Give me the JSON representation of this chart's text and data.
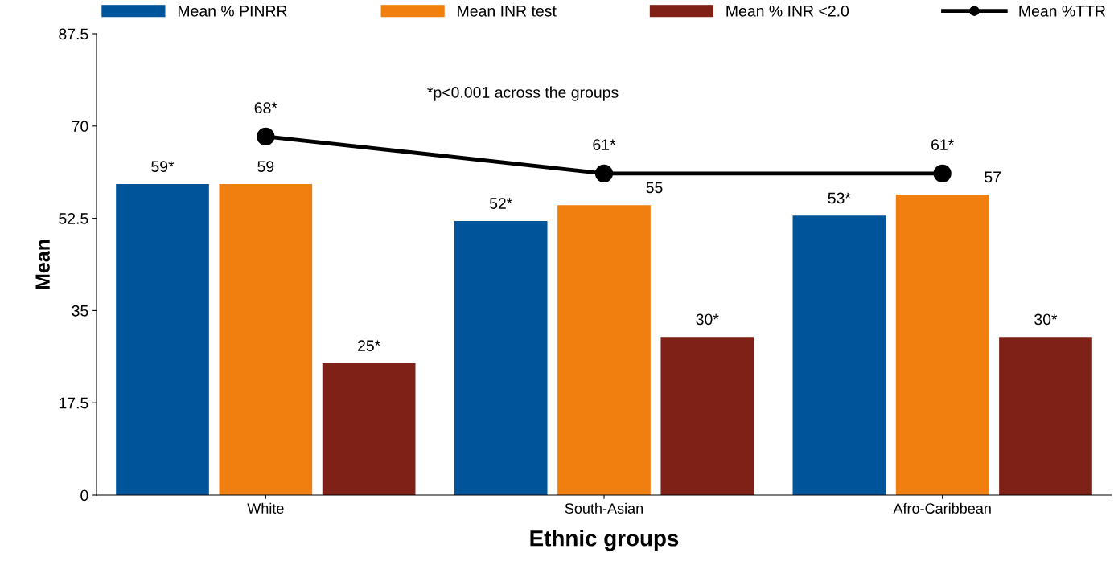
{
  "chart_data": {
    "type": "bar",
    "xlabel": "Ethnic groups",
    "ylabel": "Mean",
    "categories": [
      "White",
      "South-Asian",
      "Afro-Caribbean"
    ],
    "series": [
      {
        "name": "Mean % PINRR",
        "color": "#00559a",
        "values": [
          59,
          52,
          53
        ],
        "value_labels": [
          "59*",
          "52*",
          "53*"
        ]
      },
      {
        "name": "Mean INR test",
        "color": "#f07f0f",
        "values": [
          59,
          55,
          57
        ],
        "value_labels": [
          "59",
          "55",
          "57"
        ]
      },
      {
        "name": "Mean % INR <2.0",
        "color": "#7f2117",
        "values": [
          25,
          30,
          30
        ],
        "value_labels": [
          "25*",
          "30*",
          "30*"
        ]
      },
      {
        "name": "Mean %TTR",
        "type": "line",
        "color": "#000000",
        "marker": "circle",
        "values": [
          68,
          61,
          61
        ],
        "value_labels": [
          "68*",
          "61*",
          "61*"
        ]
      }
    ],
    "ylim": [
      0,
      87.5
    ],
    "yticks": [
      0,
      17.5,
      35,
      52.5,
      70,
      87.5
    ],
    "grid": false,
    "legend": "top",
    "annotations": [
      "*p<0.001 across the groups"
    ]
  }
}
